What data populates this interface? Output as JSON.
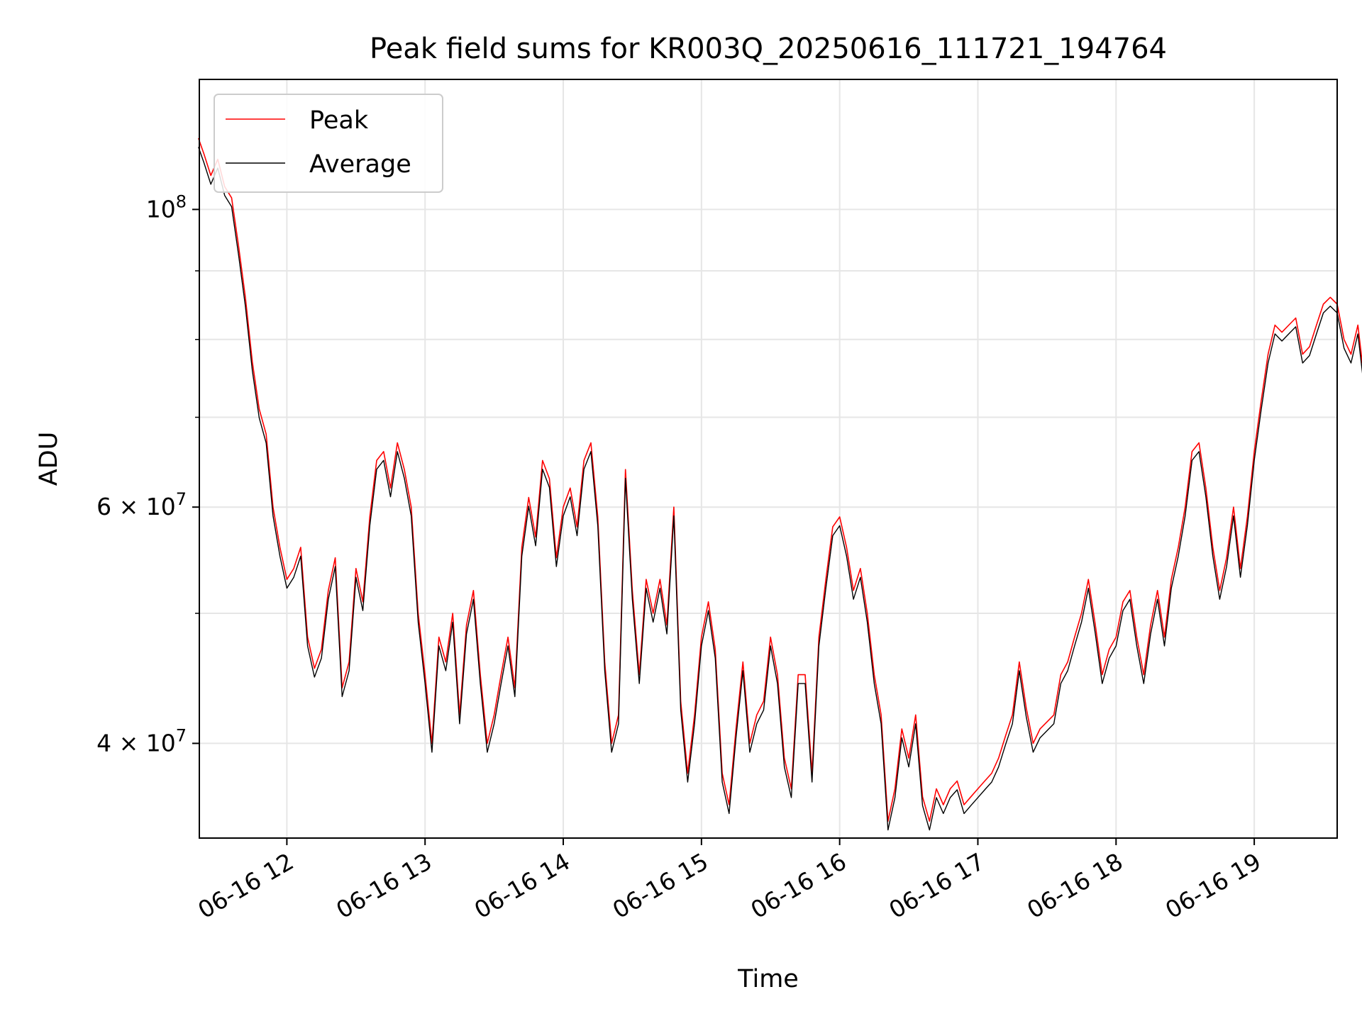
{
  "chart_data": {
    "type": "line",
    "title": "Peak field sums for KR003Q_20250616_111721_194764",
    "xlabel": "Time",
    "ylabel": "ADU",
    "yscale": "log",
    "xlim": [
      "06-16 11:22",
      "06-16 19:36"
    ],
    "ylim": [
      34000000,
      125000000
    ],
    "grid": true,
    "legend": "upper-left",
    "x_ticks": [
      "06-16 12",
      "06-16 13",
      "06-16 14",
      "06-16 15",
      "06-16 16",
      "06-16 17",
      "06-16 18",
      "06-16 19"
    ],
    "y_ticks": [
      {
        "value": 100000000,
        "mant": "",
        "base": "10",
        "exp": "8"
      },
      {
        "value": 60000000,
        "mant": "6 × ",
        "base": "10",
        "exp": "7"
      },
      {
        "value": 40000000,
        "mant": "4 × ",
        "base": "10",
        "exp": "7"
      }
    ],
    "y_minor_ticks": [
      50000000,
      70000000,
      80000000,
      90000000
    ],
    "x_unit": "hours since 06-16 00:00",
    "series": [
      {
        "name": "Peak",
        "color": "#ff0000",
        "points": [
          [
            11.36,
            113000000
          ],
          [
            11.4,
            110000000
          ],
          [
            11.45,
            106000000
          ],
          [
            11.5,
            109000000
          ],
          [
            11.55,
            104000000
          ],
          [
            11.6,
            102000000
          ],
          [
            11.65,
            94000000
          ],
          [
            11.7,
            86000000
          ],
          [
            11.75,
            77000000
          ],
          [
            11.8,
            71000000
          ],
          [
            11.85,
            68000000
          ],
          [
            11.9,
            60000000
          ],
          [
            11.95,
            56000000
          ],
          [
            12.0,
            53000000
          ],
          [
            12.05,
            54000000
          ],
          [
            12.1,
            56000000
          ],
          [
            12.15,
            48000000
          ],
          [
            12.2,
            45500000
          ],
          [
            12.25,
            47000000
          ],
          [
            12.3,
            52000000
          ],
          [
            12.35,
            55000000
          ],
          [
            12.4,
            44000000
          ],
          [
            12.45,
            46000000
          ],
          [
            12.5,
            54000000
          ],
          [
            12.55,
            51000000
          ],
          [
            12.6,
            59000000
          ],
          [
            12.65,
            65000000
          ],
          [
            12.7,
            66000000
          ],
          [
            12.75,
            62000000
          ],
          [
            12.8,
            67000000
          ],
          [
            12.85,
            64000000
          ],
          [
            12.9,
            60000000
          ],
          [
            12.95,
            50000000
          ],
          [
            13.0,
            45000000
          ],
          [
            13.05,
            40000000
          ],
          [
            13.1,
            48000000
          ],
          [
            13.15,
            46000000
          ],
          [
            13.2,
            50000000
          ],
          [
            13.25,
            42000000
          ],
          [
            13.3,
            49000000
          ],
          [
            13.35,
            52000000
          ],
          [
            13.4,
            45000000
          ],
          [
            13.45,
            40000000
          ],
          [
            13.5,
            42000000
          ],
          [
            13.55,
            45000000
          ],
          [
            13.6,
            48000000
          ],
          [
            13.65,
            44000000
          ],
          [
            13.7,
            56000000
          ],
          [
            13.75,
            61000000
          ],
          [
            13.8,
            57000000
          ],
          [
            13.85,
            65000000
          ],
          [
            13.9,
            63000000
          ],
          [
            13.95,
            55000000
          ],
          [
            14.0,
            60000000
          ],
          [
            14.05,
            62000000
          ],
          [
            14.1,
            58000000
          ],
          [
            14.15,
            65000000
          ],
          [
            14.2,
            67000000
          ],
          [
            14.25,
            59000000
          ],
          [
            14.3,
            46000000
          ],
          [
            14.35,
            40000000
          ],
          [
            14.4,
            42000000
          ],
          [
            14.45,
            64000000
          ],
          [
            14.5,
            52000000
          ],
          [
            14.55,
            45000000
          ],
          [
            14.6,
            53000000
          ],
          [
            14.65,
            50000000
          ],
          [
            14.7,
            53000000
          ],
          [
            14.75,
            49000000
          ],
          [
            14.8,
            60000000
          ],
          [
            14.85,
            43000000
          ],
          [
            14.9,
            38000000
          ],
          [
            14.95,
            42000000
          ],
          [
            15.0,
            48000000
          ],
          [
            15.05,
            51000000
          ],
          [
            15.1,
            47000000
          ],
          [
            15.15,
            38000000
          ],
          [
            15.2,
            36000000
          ],
          [
            15.25,
            41000000
          ],
          [
            15.3,
            46000000
          ],
          [
            15.35,
            40000000
          ],
          [
            15.4,
            42000000
          ],
          [
            15.45,
            43000000
          ],
          [
            15.5,
            48000000
          ],
          [
            15.55,
            45000000
          ],
          [
            15.6,
            39000000
          ],
          [
            15.65,
            37000000
          ],
          [
            15.7,
            45000000
          ],
          [
            15.75,
            45000000
          ],
          [
            15.8,
            38000000
          ],
          [
            15.85,
            48000000
          ],
          [
            15.9,
            53000000
          ],
          [
            15.95,
            58000000
          ],
          [
            16.0,
            59000000
          ],
          [
            16.05,
            56000000
          ],
          [
            16.1,
            52000000
          ],
          [
            16.15,
            54000000
          ],
          [
            16.2,
            50000000
          ],
          [
            16.25,
            45000000
          ],
          [
            16.3,
            42000000
          ],
          [
            16.35,
            35000000
          ],
          [
            16.4,
            37000000
          ],
          [
            16.45,
            41000000
          ],
          [
            16.5,
            39000000
          ],
          [
            16.55,
            42000000
          ],
          [
            16.6,
            36500000
          ],
          [
            16.65,
            35000000
          ],
          [
            16.7,
            37000000
          ],
          [
            16.75,
            36000000
          ],
          [
            16.8,
            37000000
          ],
          [
            16.85,
            37500000
          ],
          [
            16.9,
            36000000
          ],
          [
            16.95,
            36500000
          ],
          [
            17.0,
            37000000
          ],
          [
            17.05,
            37500000
          ],
          [
            17.1,
            38000000
          ],
          [
            17.15,
            39000000
          ],
          [
            17.2,
            40500000
          ],
          [
            17.25,
            42000000
          ],
          [
            17.3,
            46000000
          ],
          [
            17.35,
            42500000
          ],
          [
            17.4,
            40000000
          ],
          [
            17.45,
            41000000
          ],
          [
            17.5,
            41500000
          ],
          [
            17.55,
            42000000
          ],
          [
            17.6,
            45000000
          ],
          [
            17.65,
            46000000
          ],
          [
            17.7,
            48000000
          ],
          [
            17.75,
            50000000
          ],
          [
            17.8,
            53000000
          ],
          [
            17.85,
            49000000
          ],
          [
            17.9,
            45000000
          ],
          [
            17.95,
            47000000
          ],
          [
            18.0,
            48000000
          ],
          [
            18.05,
            51000000
          ],
          [
            18.1,
            52000000
          ],
          [
            18.15,
            48000000
          ],
          [
            18.2,
            45000000
          ],
          [
            18.25,
            49000000
          ],
          [
            18.3,
            52000000
          ],
          [
            18.35,
            48000000
          ],
          [
            18.4,
            53000000
          ],
          [
            18.45,
            56000000
          ],
          [
            18.5,
            60000000
          ],
          [
            18.55,
            66000000
          ],
          [
            18.6,
            67000000
          ],
          [
            18.65,
            62000000
          ],
          [
            18.7,
            56000000
          ],
          [
            18.75,
            52000000
          ],
          [
            18.8,
            55000000
          ],
          [
            18.85,
            60000000
          ],
          [
            18.9,
            54000000
          ],
          [
            18.95,
            59000000
          ],
          [
            19.0,
            66000000
          ],
          [
            19.05,
            72000000
          ],
          [
            19.1,
            78000000
          ],
          [
            19.15,
            82000000
          ],
          [
            19.2,
            81000000
          ],
          [
            19.25,
            82000000
          ],
          [
            19.3,
            83000000
          ],
          [
            19.35,
            78000000
          ],
          [
            19.4,
            79000000
          ],
          [
            19.45,
            82000000
          ],
          [
            19.5,
            85000000
          ],
          [
            19.55,
            86000000
          ],
          [
            19.6,
            85000000
          ],
          [
            19.65,
            80000000
          ],
          [
            19.7,
            78000000
          ],
          [
            19.75,
            82000000
          ],
          [
            19.8,
            74000000
          ],
          [
            19.85,
            72000000
          ],
          [
            19.9,
            72500000
          ],
          [
            19.95,
            66000000
          ],
          [
            20.0,
            65000000
          ],
          [
            20.05,
            69000000
          ],
          [
            20.1,
            72000000
          ],
          [
            20.15,
            71000000
          ],
          [
            20.2,
            59000000
          ],
          [
            20.25,
            65000000
          ],
          [
            20.3,
            69000000
          ],
          [
            20.35,
            67500000
          ],
          [
            20.4,
            68000000
          ],
          [
            20.45,
            70000000
          ],
          [
            20.5,
            72000000
          ],
          [
            20.55,
            74000000
          ],
          [
            20.6,
            77000000
          ],
          [
            20.65,
            82000000
          ],
          [
            20.7,
            96000000
          ],
          [
            20.75,
            102000000
          ],
          [
            20.8,
            108000000
          ],
          [
            20.85,
            116000000
          ],
          [
            20.9,
            114000000
          ],
          [
            20.95,
            113000000
          ],
          [
            21.0,
            112000000
          ],
          [
            21.05,
            111000000
          ],
          [
            21.1,
            110000000
          ],
          [
            21.15,
            111000000
          ],
          [
            21.17,
            125000000
          ],
          [
            21.18,
            113000000
          ],
          [
            21.2,
            111000000
          ],
          [
            21.25,
            110000000
          ]
        ]
      },
      {
        "name": "Average",
        "color": "#000000",
        "points": []
      }
    ]
  }
}
